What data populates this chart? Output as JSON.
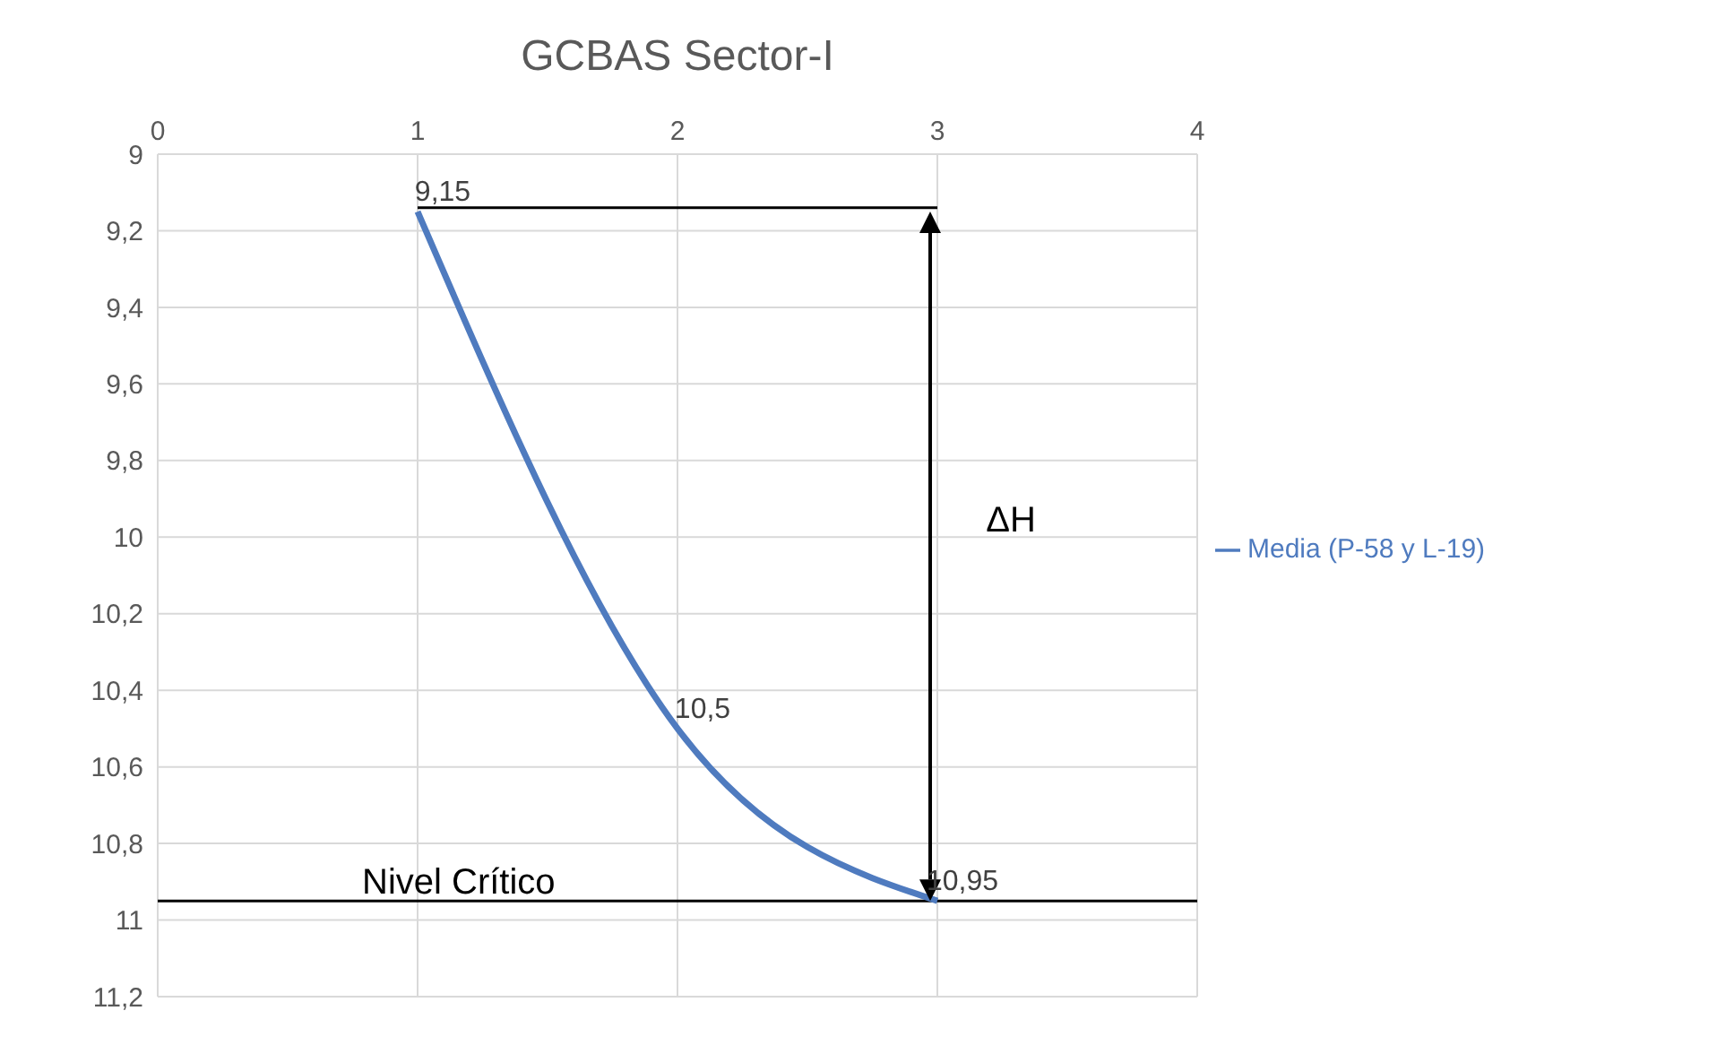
{
  "chart_data": {
    "type": "line",
    "title": "GCBAS Sector-I",
    "x": [
      1,
      2,
      3
    ],
    "series": [
      {
        "name": "Media (P-58 y L-19)",
        "color": "#4f7bbf",
        "values": [
          9.15,
          10.5,
          10.95
        ],
        "value_labels": [
          "9,15",
          "10,5",
          "10,95"
        ]
      },
      {
        "x": [
          1,
          3
        ],
        "color": "#000000",
        "values": [
          9.14,
          9.14
        ]
      }
    ],
    "xlim": [
      0,
      4
    ],
    "xticks": [
      0,
      1,
      2,
      3,
      4
    ],
    "ylim": [
      11.2,
      9
    ],
    "yticks": [
      9,
      {
        "value": 9.2,
        "label": "9,2"
      },
      {
        "value": 9.4,
        "label": "9,4"
      },
      {
        "value": 9.6,
        "label": "9,6"
      },
      {
        "value": 9.8,
        "label": "9,8"
      },
      10,
      {
        "value": 10.2,
        "label": "10,2"
      },
      {
        "value": 10.4,
        "label": "10,4"
      },
      {
        "value": 10.6,
        "label": "10,6"
      },
      {
        "value": 10.8,
        "label": "10,8"
      },
      11,
      {
        "value": 11.2,
        "label": "11,2"
      }
    ],
    "ref_lines": [
      {
        "axis": "y",
        "value": 10.95,
        "label": "Nivel Crítico",
        "color": "#000000"
      }
    ],
    "annotations": [
      "ΔH"
    ],
    "grid": true,
    "legend": "right",
    "marker": "none",
    "line_style": "solid"
  }
}
